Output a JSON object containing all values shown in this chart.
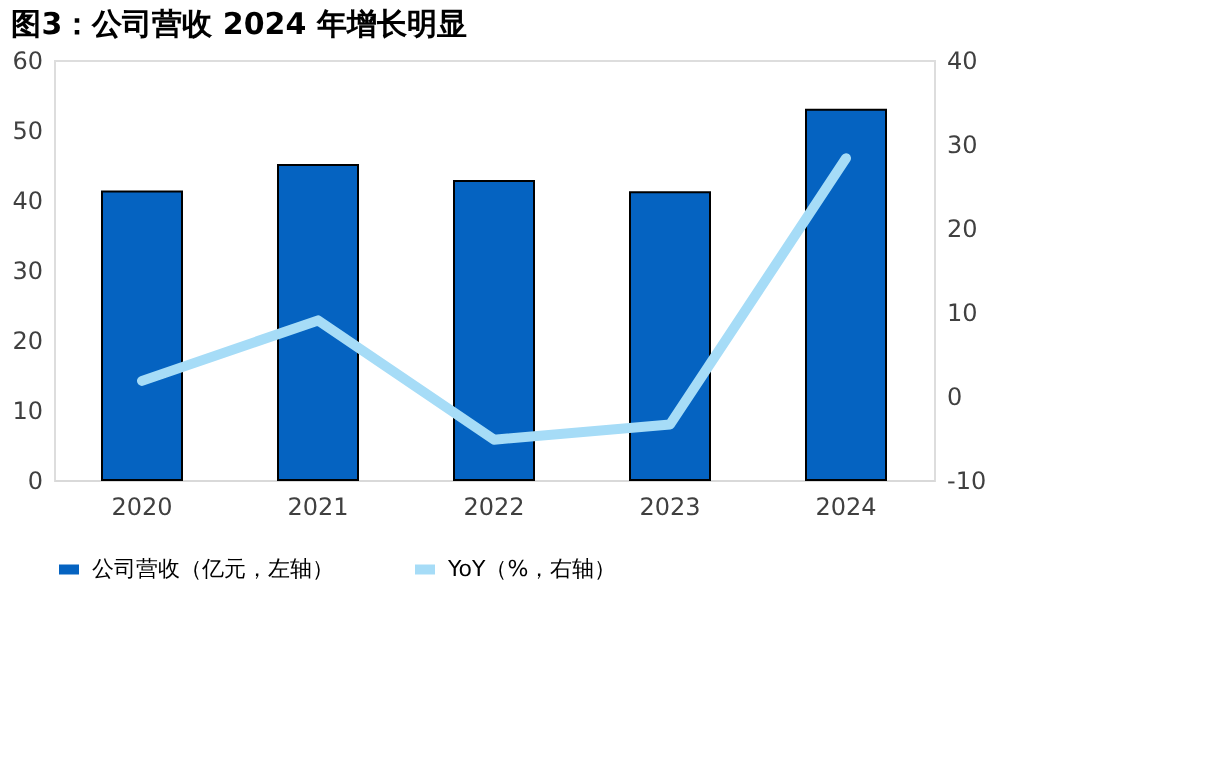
{
  "chart_data": {
    "type": "bar",
    "title": "图3：公司营收 2024 年增长明显",
    "categories": [
      "2020",
      "2021",
      "2022",
      "2023",
      "2024"
    ],
    "series": [
      {
        "name": "公司营收（亿元，左轴）",
        "color": "#0563c1",
        "values": [
          41.2,
          45.0,
          42.7,
          41.1,
          52.9
        ]
      },
      {
        "name": "YoY（%，右轴）",
        "type": "line",
        "axis": "y2",
        "color": "#a6dcf7",
        "values": [
          1.8,
          9.0,
          -5.2,
          -3.4,
          28.3
        ]
      }
    ],
    "ylim": [
      0,
      60
    ],
    "yticks": [
      0,
      10,
      20,
      30,
      40,
      50,
      60
    ],
    "y2lim": [
      -10,
      40
    ],
    "y2ticks": [
      -10,
      0,
      10,
      20,
      30,
      40
    ],
    "grid": false,
    "legend": "bottom"
  }
}
